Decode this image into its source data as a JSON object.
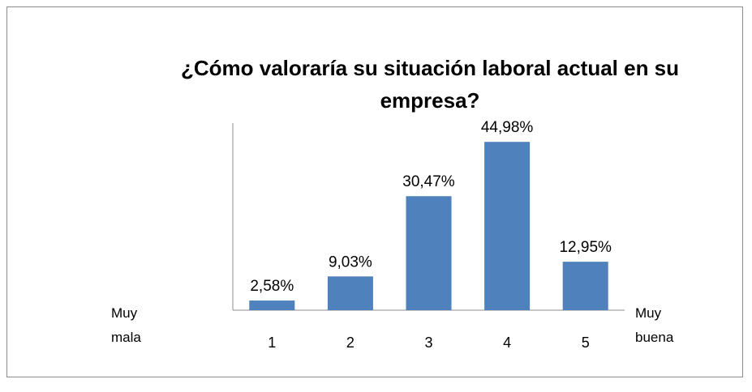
{
  "chart_data": {
    "type": "bar",
    "title": "¿Cómo valoraría su situación laboral actual en su empresa?",
    "categories": [
      "1",
      "2",
      "3",
      "4",
      "5"
    ],
    "values": [
      2.58,
      9.03,
      30.47,
      44.98,
      12.95
    ],
    "value_labels": [
      "2,58%",
      "9,03%",
      "30,47%",
      "44,98%",
      "12,95%"
    ],
    "color": "#4f81bd",
    "ylim": [
      0,
      50
    ],
    "annotations": [
      "Muy mala",
      "Muy buena"
    ]
  }
}
